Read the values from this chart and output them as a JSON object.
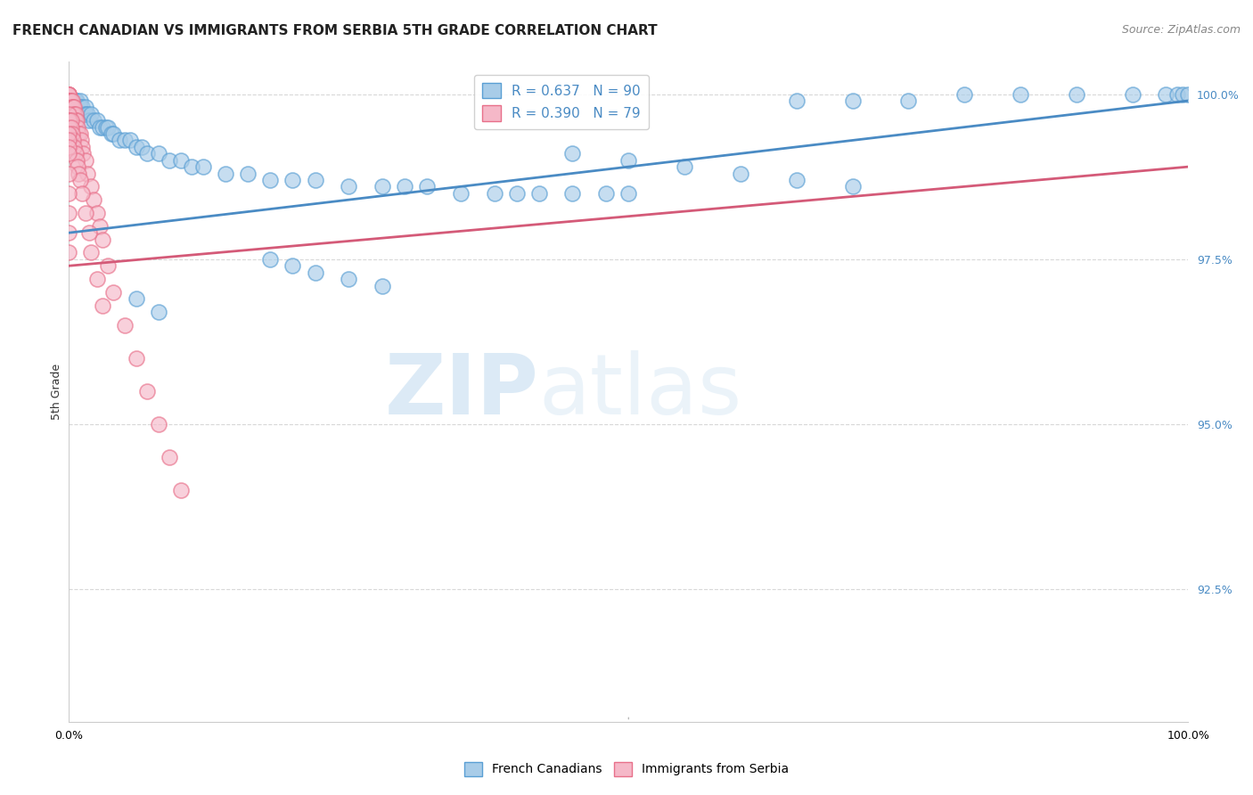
{
  "title": "FRENCH CANADIAN VS IMMIGRANTS FROM SERBIA 5TH GRADE CORRELATION CHART",
  "source": "Source: ZipAtlas.com",
  "ylabel": "5th Grade",
  "xlim": [
    0.0,
    1.0
  ],
  "ylim": [
    0.905,
    1.005
  ],
  "yticks": [
    0.925,
    0.95,
    0.975,
    1.0
  ],
  "ytick_labels": [
    "92.5%",
    "95.0%",
    "97.5%",
    "100.0%"
  ],
  "xtick_vals": [
    0.0,
    0.1,
    0.2,
    0.3,
    0.4,
    0.5,
    0.6,
    0.7,
    0.8,
    0.9,
    1.0
  ],
  "xtick_labels": [
    "0.0%",
    "",
    "",
    "",
    "",
    "",
    "",
    "",
    "",
    "",
    "100.0%"
  ],
  "blue_color": "#a8cce8",
  "pink_color": "#f5b8c8",
  "blue_edge_color": "#5a9fd4",
  "pink_edge_color": "#e8708a",
  "blue_line_color": "#4a8bc4",
  "pink_line_color": "#d45a78",
  "legend_blue_label": "French Canadians",
  "legend_pink_label": "Immigrants from Serbia",
  "R_blue": 0.637,
  "N_blue": 90,
  "R_pink": 0.39,
  "N_pink": 79,
  "blue_x": [
    0.0,
    0.0,
    0.0,
    0.001,
    0.001,
    0.001,
    0.002,
    0.002,
    0.002,
    0.003,
    0.003,
    0.004,
    0.004,
    0.005,
    0.005,
    0.005,
    0.006,
    0.007,
    0.007,
    0.008,
    0.009,
    0.01,
    0.01,
    0.01,
    0.012,
    0.013,
    0.015,
    0.015,
    0.017,
    0.018,
    0.02,
    0.022,
    0.025,
    0.028,
    0.03,
    0.033,
    0.035,
    0.038,
    0.04,
    0.045,
    0.05,
    0.055,
    0.06,
    0.065,
    0.07,
    0.08,
    0.09,
    0.1,
    0.11,
    0.12,
    0.14,
    0.16,
    0.18,
    0.2,
    0.22,
    0.25,
    0.28,
    0.3,
    0.32,
    0.35,
    0.38,
    0.4,
    0.42,
    0.45,
    0.48,
    0.5,
    0.18,
    0.2,
    0.22,
    0.25,
    0.28,
    0.06,
    0.08,
    0.65,
    0.7,
    0.75,
    0.8,
    0.85,
    0.9,
    0.95,
    0.98,
    0.99,
    0.995,
    1.0,
    0.45,
    0.5,
    0.55,
    0.6,
    0.65,
    0.7
  ],
  "blue_y": [
    0.9985,
    0.998,
    0.997,
    0.999,
    0.998,
    0.997,
    0.999,
    0.998,
    0.997,
    0.999,
    0.998,
    0.999,
    0.998,
    0.999,
    0.998,
    0.997,
    0.999,
    0.999,
    0.998,
    0.998,
    0.997,
    0.999,
    0.998,
    0.997,
    0.998,
    0.997,
    0.998,
    0.997,
    0.997,
    0.996,
    0.997,
    0.996,
    0.996,
    0.995,
    0.995,
    0.995,
    0.995,
    0.994,
    0.994,
    0.993,
    0.993,
    0.993,
    0.992,
    0.992,
    0.991,
    0.991,
    0.99,
    0.99,
    0.989,
    0.989,
    0.988,
    0.988,
    0.987,
    0.987,
    0.987,
    0.986,
    0.986,
    0.986,
    0.986,
    0.985,
    0.985,
    0.985,
    0.985,
    0.985,
    0.985,
    0.985,
    0.975,
    0.974,
    0.973,
    0.972,
    0.971,
    0.969,
    0.967,
    0.999,
    0.999,
    0.999,
    1.0,
    1.0,
    1.0,
    1.0,
    1.0,
    1.0,
    1.0,
    1.0,
    0.991,
    0.99,
    0.989,
    0.988,
    0.987,
    0.986
  ],
  "pink_x": [
    0.0,
    0.0,
    0.0,
    0.0,
    0.0,
    0.0,
    0.0,
    0.0,
    0.0,
    0.0,
    0.001,
    0.001,
    0.001,
    0.001,
    0.001,
    0.002,
    0.002,
    0.002,
    0.003,
    0.003,
    0.003,
    0.004,
    0.004,
    0.005,
    0.005,
    0.006,
    0.006,
    0.007,
    0.008,
    0.009,
    0.01,
    0.011,
    0.012,
    0.013,
    0.015,
    0.017,
    0.02,
    0.022,
    0.025,
    0.028,
    0.03,
    0.035,
    0.04,
    0.05,
    0.06,
    0.07,
    0.08,
    0.09,
    0.1,
    0.0,
    0.0,
    0.0,
    0.001,
    0.001,
    0.002,
    0.002,
    0.003,
    0.004,
    0.005,
    0.006,
    0.007,
    0.008,
    0.009,
    0.01,
    0.012,
    0.015,
    0.018,
    0.02,
    0.025,
    0.03,
    0.0,
    0.0,
    0.0,
    0.0,
    0.0,
    0.0,
    0.0,
    0.0,
    0.0
  ],
  "pink_y": [
    1.0,
    1.0,
    1.0,
    1.0,
    1.0,
    0.999,
    0.999,
    0.999,
    0.998,
    0.998,
    0.999,
    0.999,
    0.998,
    0.998,
    0.997,
    0.999,
    0.998,
    0.997,
    0.999,
    0.998,
    0.997,
    0.998,
    0.997,
    0.998,
    0.997,
    0.997,
    0.996,
    0.996,
    0.995,
    0.994,
    0.994,
    0.993,
    0.992,
    0.991,
    0.99,
    0.988,
    0.986,
    0.984,
    0.982,
    0.98,
    0.978,
    0.974,
    0.97,
    0.965,
    0.96,
    0.955,
    0.95,
    0.945,
    0.94,
    0.997,
    0.996,
    0.995,
    0.996,
    0.995,
    0.996,
    0.995,
    0.994,
    0.993,
    0.992,
    0.991,
    0.99,
    0.989,
    0.988,
    0.987,
    0.985,
    0.982,
    0.979,
    0.976,
    0.972,
    0.968,
    0.994,
    0.993,
    0.992,
    0.991,
    0.988,
    0.985,
    0.982,
    0.979,
    0.976
  ],
  "watermark_zip": "ZIP",
  "watermark_atlas": "atlas",
  "background_color": "#ffffff",
  "grid_color": "#d8d8d8",
  "title_fontsize": 11,
  "axis_label_fontsize": 9,
  "tick_fontsize": 9,
  "source_fontsize": 9,
  "legend_fontsize": 11,
  "scatter_size": 150,
  "scatter_alpha": 0.65,
  "scatter_linewidth": 1.2,
  "trend_linewidth": 2.0
}
